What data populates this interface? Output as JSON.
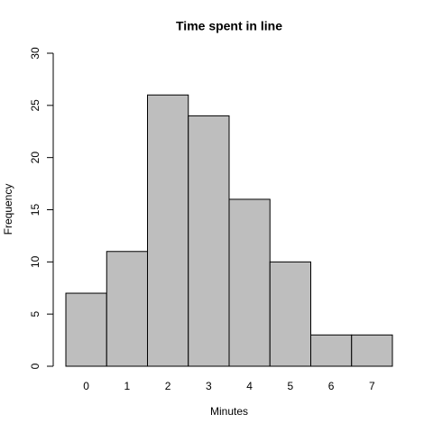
{
  "chart_data": {
    "type": "bar",
    "title": "Time spent in line",
    "x_label": "Minutes",
    "y_label": "Frequency",
    "categories": [
      "0",
      "1",
      "2",
      "3",
      "4",
      "5",
      "6",
      "7"
    ],
    "values": [
      7,
      11,
      26,
      24,
      16,
      10,
      3,
      3
    ],
    "color": "#bebebe",
    "ylim": [
      0,
      30
    ],
    "yticks": [
      0,
      5,
      10,
      15,
      20,
      25,
      30
    ],
    "grid": false
  }
}
